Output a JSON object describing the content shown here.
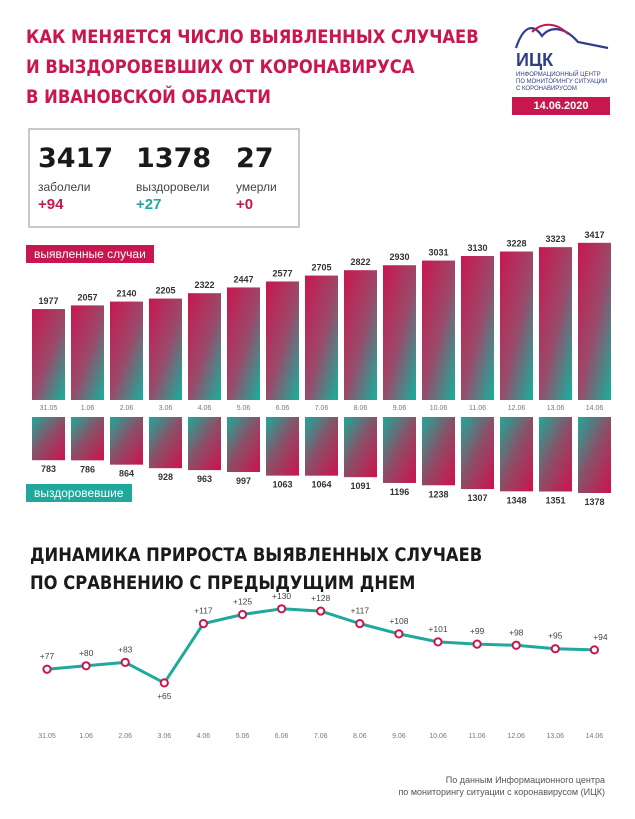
{
  "header": {
    "title_lines": [
      "Как меняется число выявленных случаев",
      "и выздоровевших от коронавируса",
      "в Ивановской области"
    ],
    "logo_name": "ИЦК",
    "logo_subtitle_lines": [
      "Информационный центр",
      "по мониторингу ситуации",
      "с коронавирусом"
    ],
    "date": "14.06.2020"
  },
  "stats": [
    {
      "value": "3417",
      "label": "заболели",
      "delta": "+94"
    },
    {
      "value": "1378",
      "label": "выздоровели",
      "delta": "+27"
    },
    {
      "value": "27",
      "label": "умерли",
      "delta": "+0"
    }
  ],
  "colors": {
    "accent": "#c8174f",
    "teal": "#1fa99c",
    "navy": "#2f3e8a"
  },
  "labels": {
    "cases": "выявленные случаи",
    "recovered": "выздоровевшие"
  },
  "subtitle_lines": [
    "Динамика прироста выявленных случаев",
    "по сравнению с предыдущим днем"
  ],
  "source_lines": [
    "По данным Информационного центра",
    "по мониторингу ситуации с коронавирусом (ИЦК)"
  ],
  "chart_data": [
    {
      "type": "bar",
      "name": "выявленные случаи",
      "categories": [
        "31.05",
        "1.06",
        "2.06",
        "3.06",
        "4.06",
        "5.06",
        "6.06",
        "7.06",
        "8.06",
        "9.06",
        "10.06",
        "11.06",
        "12.06",
        "13.06",
        "14.06"
      ],
      "values": [
        1977,
        2057,
        2140,
        2205,
        2322,
        2447,
        2577,
        2705,
        2822,
        2930,
        3031,
        3130,
        3228,
        3323,
        3417
      ]
    },
    {
      "type": "bar",
      "name": "выздоровевшие",
      "categories": [
        "31.05",
        "1.06",
        "2.06",
        "3.06",
        "4.06",
        "5.06",
        "6.06",
        "7.06",
        "8.06",
        "9.06",
        "10.06",
        "11.06",
        "12.06",
        "13.06",
        "14.06"
      ],
      "values": [
        783,
        786,
        864,
        928,
        963,
        997,
        1063,
        1064,
        1091,
        1196,
        1238,
        1307,
        1348,
        1351,
        1378
      ]
    },
    {
      "type": "line",
      "categories": [
        "31.05",
        "1.06",
        "2.06",
        "3.06",
        "4.06",
        "5.06",
        "6.06",
        "7.06",
        "8.06",
        "9.06",
        "10.06",
        "11.06",
        "12.06",
        "13.06",
        "14.06"
      ],
      "values": [
        77,
        80,
        83,
        65,
        117,
        125,
        130,
        128,
        117,
        108,
        101,
        99,
        98,
        95,
        94
      ],
      "value_labels": [
        "+77",
        "+80",
        "+83",
        "+65",
        "+117",
        "+125",
        "+130",
        "+128",
        "+117",
        "+108",
        "+101",
        "+99",
        "+98",
        "+95",
        "+94"
      ]
    }
  ]
}
